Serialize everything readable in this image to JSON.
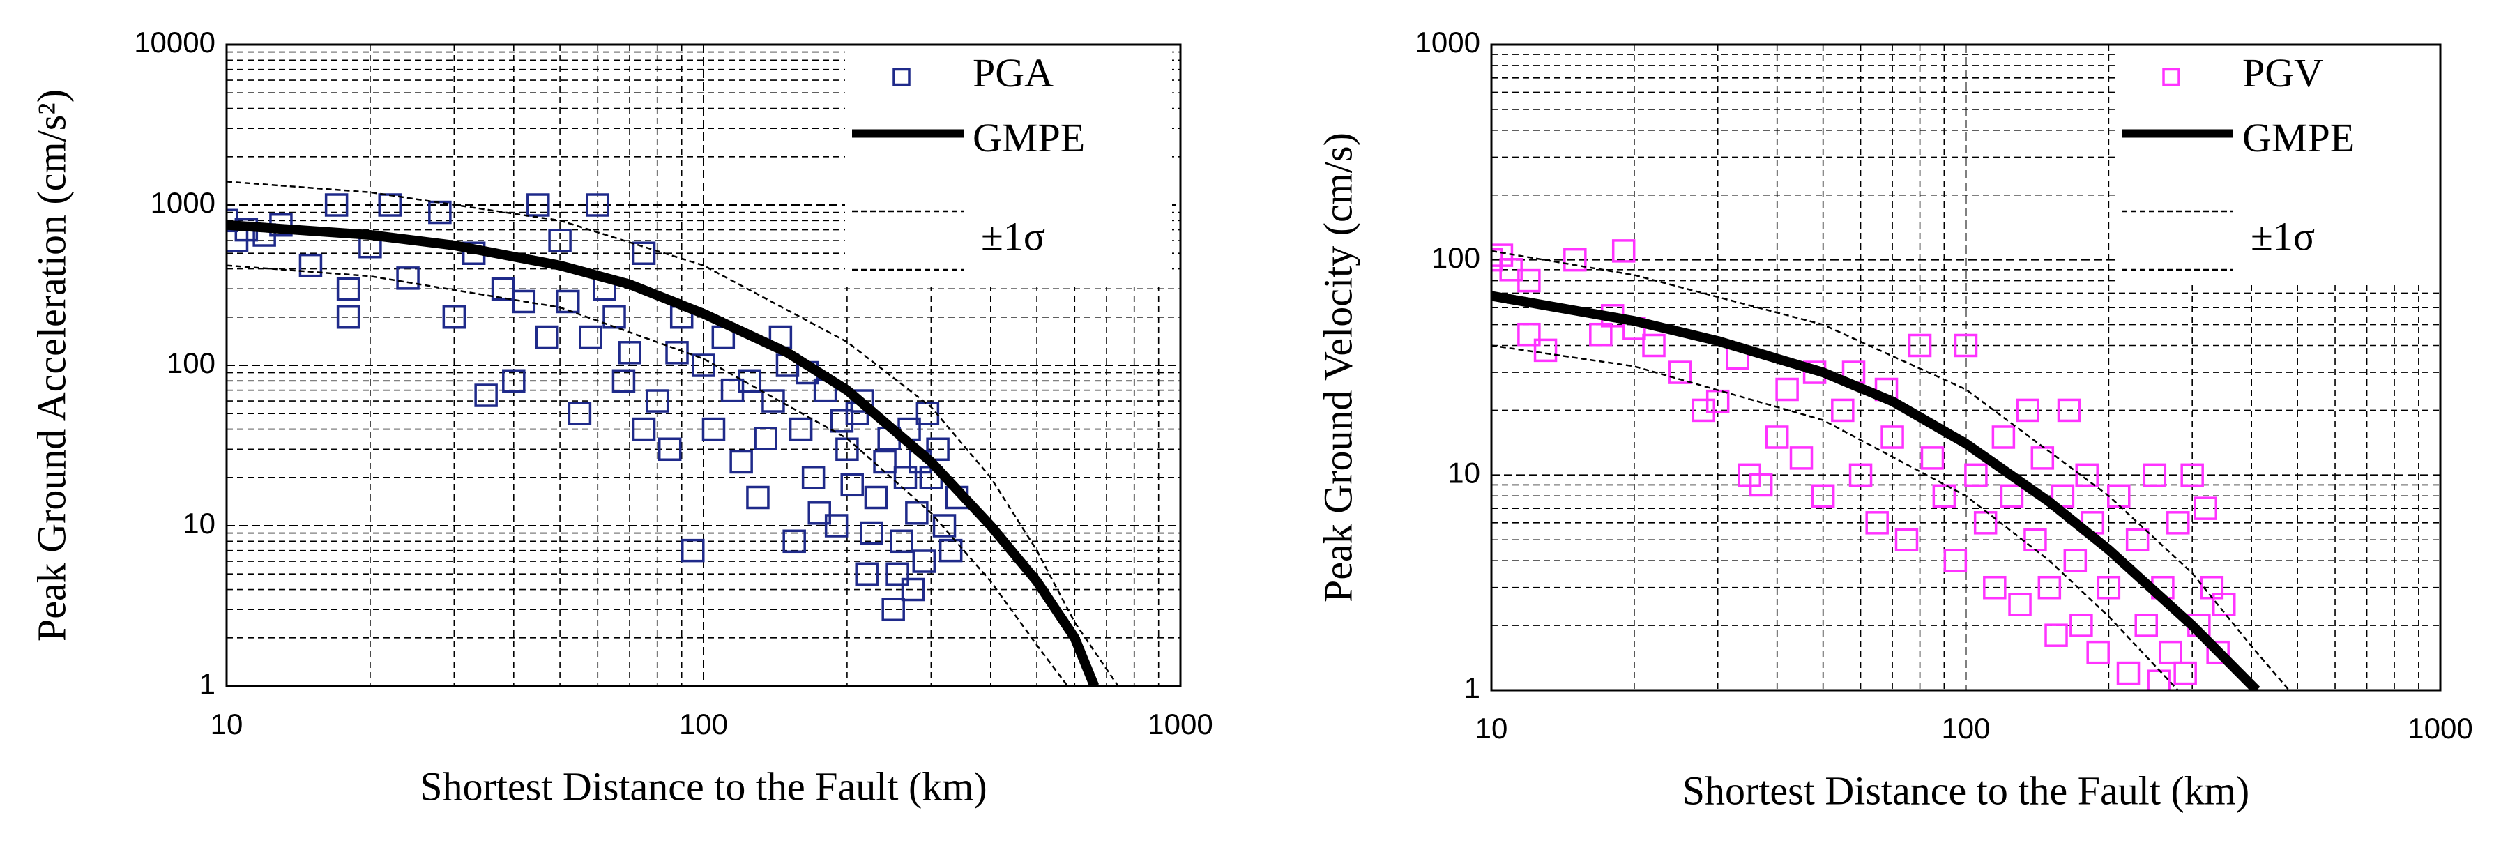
{
  "chart_data": [
    {
      "type": "scatter",
      "xlabel": "Shortest Distance to the Fault (km)",
      "ylabel": "Peak Ground Acceleration (cm/s²)",
      "xlim": [
        10,
        1000
      ],
      "ylim": [
        1,
        10000
      ],
      "xticks": [
        10,
        100,
        1000
      ],
      "yticks": [
        1,
        10,
        100,
        1000,
        10000
      ],
      "log_x": true,
      "log_y": true,
      "grid": true,
      "legend": "upper right",
      "series": [
        {
          "name": "PGA",
          "color": "#1f2a8a",
          "marker": "square",
          "x": [
            10,
            10.5,
            11,
            12,
            13,
            15,
            17,
            18,
            18,
            20,
            22,
            24,
            28,
            30,
            33,
            35,
            38,
            40,
            42,
            45,
            47,
            50,
            55,
            60,
            62,
            65,
            70,
            75,
            80,
            85,
            90,
            95,
            100,
            105,
            110,
            120,
            125,
            130,
            140,
            150,
            155,
            160,
            170,
            180,
            190,
            200,
            210,
            220,
            230,
            240,
            250,
            260,
            270,
            280,
            290,
            300,
            310,
            320,
            330,
            340,
            88,
            115,
            135,
            145,
            165,
            175,
            195,
            205,
            215,
            225,
            245,
            255,
            265,
            275,
            285,
            295,
            75,
            68,
            58,
            52
          ],
          "values": [
            800,
            600,
            700,
            650,
            750,
            420,
            1000,
            300,
            200,
            550,
            1000,
            350,
            900,
            200,
            500,
            65,
            300,
            80,
            250,
            1000,
            150,
            600,
            50,
            1000,
            300,
            200,
            120,
            500,
            60,
            30,
            200,
            7,
            100,
            40,
            150,
            25,
            80,
            15,
            60,
            100,
            8,
            40,
            20,
            70,
            10,
            30,
            50,
            5,
            15,
            25,
            3,
            8,
            40,
            12,
            6,
            20,
            30,
            10,
            7,
            15,
            120,
            70,
            35,
            150,
            90,
            12,
            45,
            18,
            60,
            9,
            35,
            5,
            20,
            4,
            25,
            50,
            40,
            80,
            150,
            250
          ]
        },
        {
          "name": "GMPE",
          "color": "#000000",
          "line": "solid",
          "x": [
            10,
            20,
            30,
            50,
            70,
            100,
            150,
            200,
            300,
            400,
            500,
            600,
            660
          ],
          "values": [
            750,
            650,
            560,
            420,
            320,
            210,
            120,
            70,
            25,
            10,
            4.5,
            2,
            1
          ]
        },
        {
          "name": "±1σ",
          "color": "#000000",
          "line": "dashed",
          "x": [
            10,
            20,
            50,
            100,
            200,
            300,
            400,
            500,
            600,
            740,
            null,
            10,
            20,
            50,
            100,
            200,
            300,
            400,
            500,
            580
          ],
          "values": [
            1400,
            1200,
            800,
            420,
            140,
            55,
            20,
            7,
            2.5,
            1,
            null,
            420,
            360,
            230,
            110,
            35,
            12,
            4.5,
            1.8,
            1
          ]
        }
      ]
    },
    {
      "type": "scatter",
      "xlabel": "Shortest Distance to the Fault (km)",
      "ylabel": "Peak Ground Velocity (cm/s)",
      "xlim": [
        10,
        1000
      ],
      "ylim": [
        1,
        1000
      ],
      "xticks": [
        10,
        100,
        1000
      ],
      "yticks": [
        1,
        10,
        100,
        1000
      ],
      "log_x": true,
      "log_y": true,
      "grid": true,
      "legend": "upper right",
      "series": [
        {
          "name": "PGV",
          "color": "#ff33ff",
          "marker": "square",
          "x": [
            10,
            10.5,
            11,
            12,
            12,
            13,
            15,
            17,
            18,
            19,
            20,
            22,
            25,
            28,
            30,
            33,
            35,
            37,
            40,
            42,
            45,
            48,
            50,
            55,
            58,
            60,
            65,
            68,
            70,
            75,
            80,
            85,
            90,
            95,
            100,
            105,
            110,
            115,
            120,
            125,
            130,
            135,
            140,
            145,
            150,
            155,
            160,
            165,
            170,
            175,
            180,
            185,
            190,
            200,
            210,
            220,
            230,
            240,
            250,
            255,
            260,
            270,
            280,
            290,
            300,
            310,
            320,
            330,
            340,
            350
          ],
          "values": [
            100,
            105,
            90,
            80,
            45,
            38,
            100,
            45,
            55,
            110,
            48,
            40,
            30,
            20,
            22,
            35,
            10,
            9,
            15,
            25,
            12,
            30,
            8,
            20,
            30,
            10,
            6,
            25,
            15,
            5,
            40,
            12,
            8,
            4,
            40,
            10,
            6,
            3,
            15,
            8,
            2.5,
            20,
            5,
            12,
            3,
            1.8,
            8,
            20,
            4,
            2,
            10,
            6,
            1.5,
            3,
            8,
            1.2,
            5,
            2,
            10,
            1.1,
            3,
            1.5,
            6,
            1.2,
            10,
            2,
            7,
            3,
            1.5,
            2.5
          ]
        },
        {
          "name": "GMPE",
          "color": "#000000",
          "line": "solid",
          "x": [
            10,
            20,
            30,
            50,
            70,
            100,
            150,
            200,
            300,
            410
          ],
          "values": [
            68,
            52,
            42,
            30,
            22,
            14,
            7.5,
            4.5,
            2,
            1
          ]
        },
        {
          "name": "±1σ",
          "color": "#000000",
          "line": "dashed",
          "x": [
            10,
            20,
            50,
            100,
            200,
            300,
            400,
            480,
            null,
            10,
            20,
            50,
            100,
            150,
            200,
            280
          ],
          "values": [
            110,
            85,
            50,
            25,
            8,
            3.5,
            1.6,
            1,
            null,
            40,
            32,
            18,
            8,
            4,
            2.2,
            1
          ]
        }
      ]
    }
  ]
}
